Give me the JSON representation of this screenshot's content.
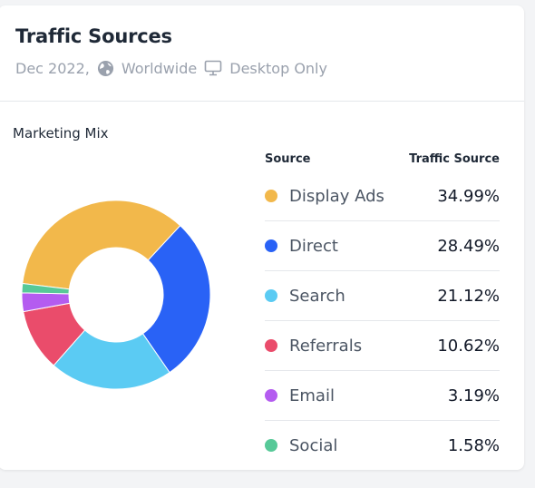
{
  "card": {
    "title": "Traffic Sources",
    "date": "Dec 2022,",
    "region": "Worldwide",
    "device": "Desktop Only",
    "icons": {
      "region": "globe-icon",
      "device": "monitor-icon"
    }
  },
  "chart": {
    "title": "Marketing Mix",
    "col_source": "Source",
    "col_share": "Traffic Source"
  },
  "legend": [
    {
      "label": "Display Ads",
      "value": "34.99%",
      "color": "#f2b84b"
    },
    {
      "label": "Direct",
      "value": "28.49%",
      "color": "#2962f6"
    },
    {
      "label": "Search",
      "value": "21.12%",
      "color": "#5bcbf3"
    },
    {
      "label": "Referrals",
      "value": "10.62%",
      "color": "#ea4c6b"
    },
    {
      "label": "Email",
      "value": "3.19%",
      "color": "#b45cf0"
    },
    {
      "label": "Social",
      "value": "1.58%",
      "color": "#57c998"
    }
  ],
  "chart_data": {
    "type": "pie",
    "title": "Marketing Mix",
    "categories": [
      "Display Ads",
      "Direct",
      "Search",
      "Referrals",
      "Email",
      "Social"
    ],
    "values": [
      34.99,
      28.49,
      21.12,
      10.62,
      3.19,
      1.58
    ],
    "colors": [
      "#f2b84b",
      "#2962f6",
      "#5bcbf3",
      "#ea4c6b",
      "#b45cf0",
      "#57c998"
    ],
    "donut": true
  }
}
